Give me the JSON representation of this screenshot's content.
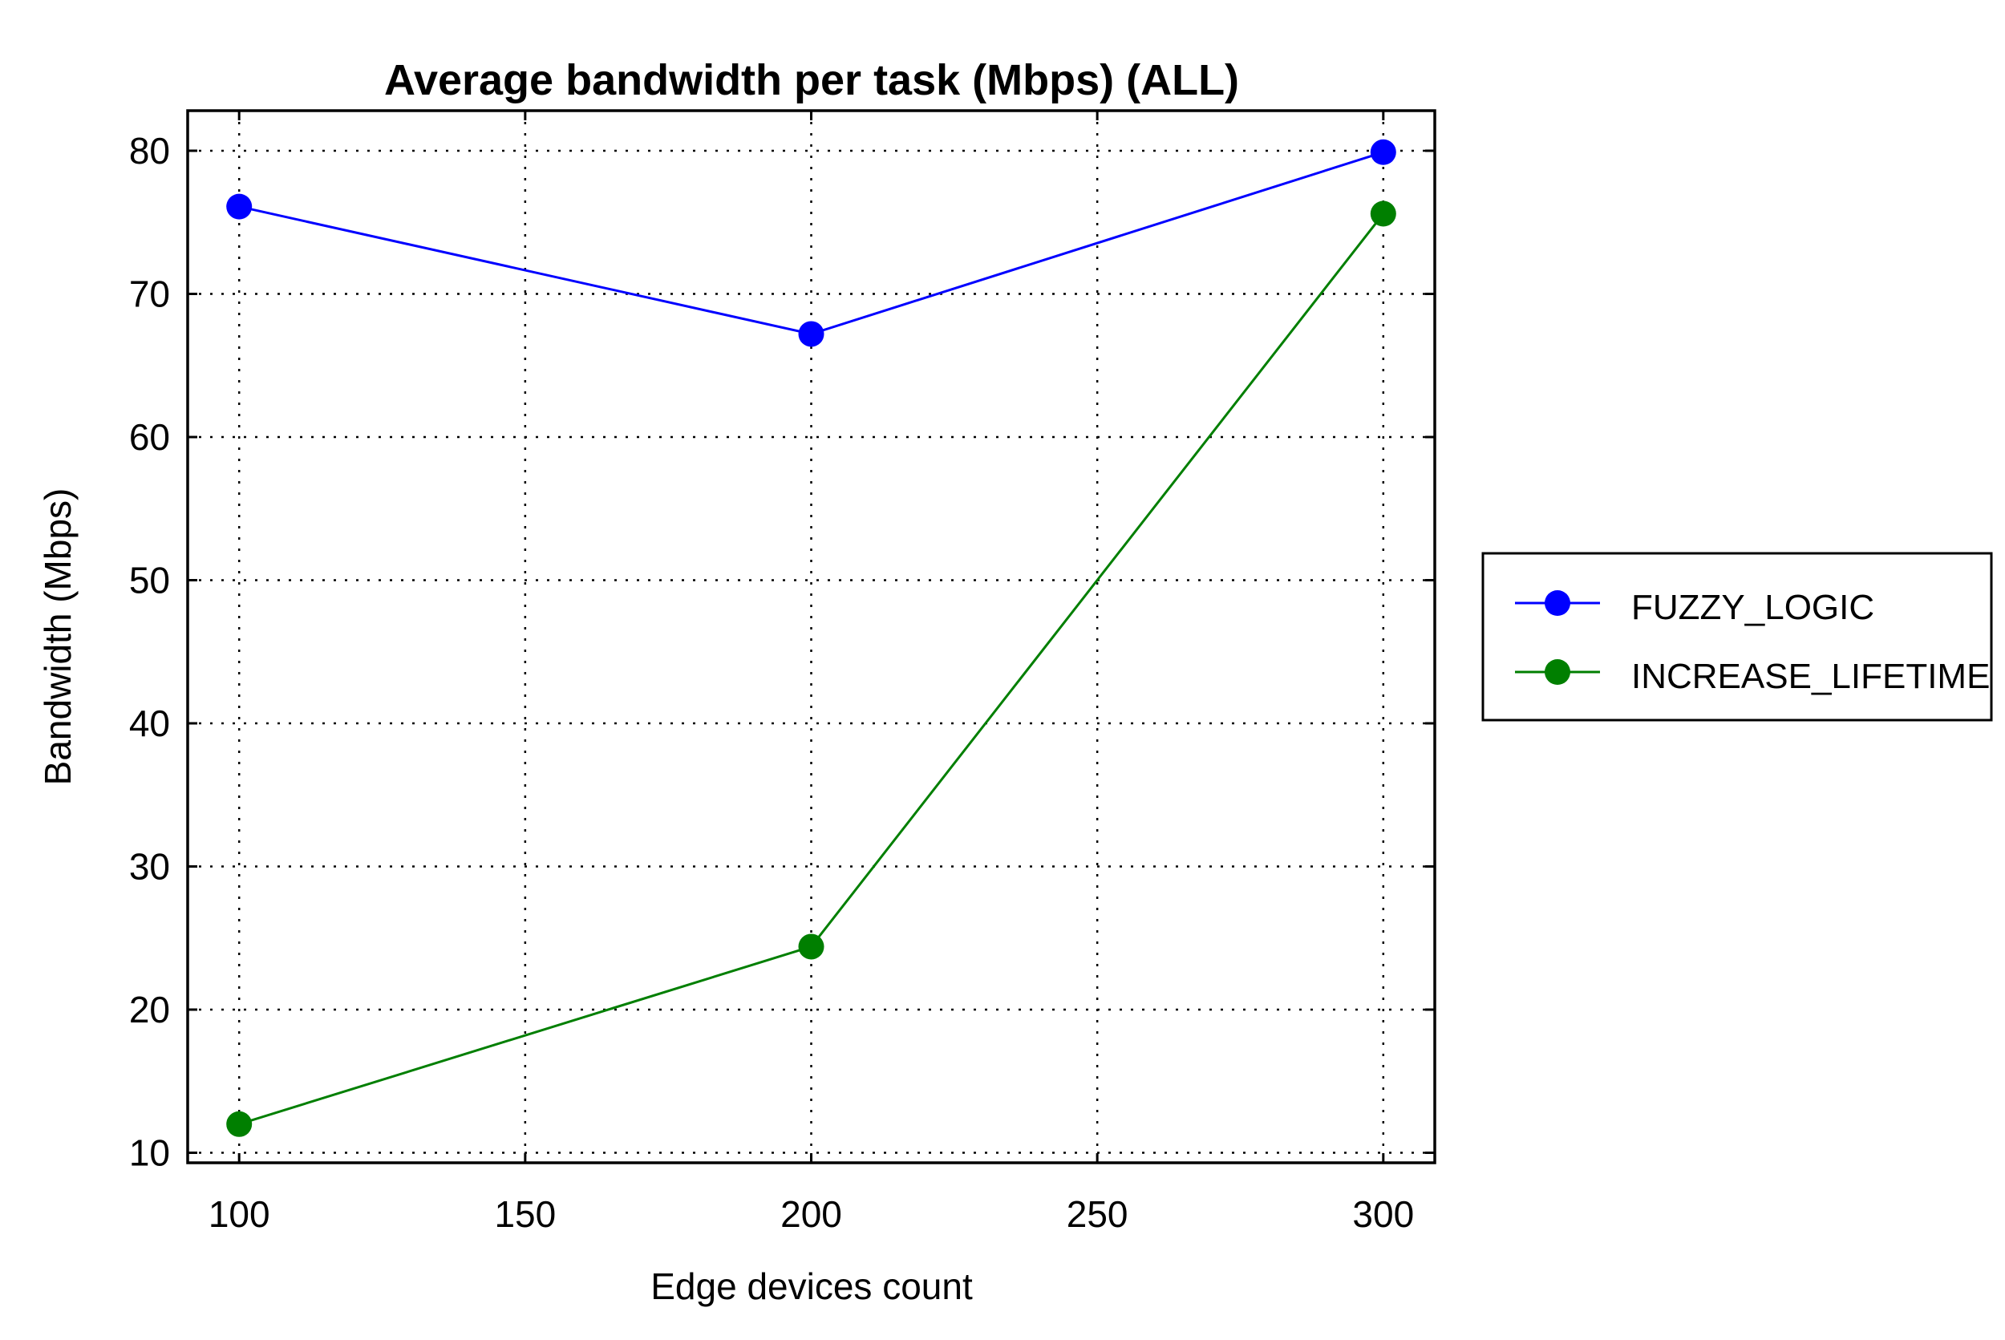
{
  "chart_data": {
    "type": "line",
    "title": "Average bandwidth per task (Mbps) (ALL)",
    "xlabel": "Edge devices count",
    "ylabel": "Bandwidth (Mbps)",
    "x": [
      100,
      200,
      300
    ],
    "xlim": [
      91,
      309
    ],
    "ylim": [
      9.3,
      82.8
    ],
    "xticks": [
      100,
      150,
      200,
      250,
      300
    ],
    "yticks": [
      10,
      20,
      30,
      40,
      50,
      60,
      70,
      80
    ],
    "grid": true,
    "legend_position": "right",
    "series": [
      {
        "name": "FUZZY_LOGIC",
        "color": "#0000ff",
        "values": [
          76.1,
          67.2,
          79.9
        ]
      },
      {
        "name": "INCREASE_LIFETIME",
        "color": "#007f00",
        "values": [
          12.0,
          24.4,
          75.6
        ]
      }
    ]
  }
}
